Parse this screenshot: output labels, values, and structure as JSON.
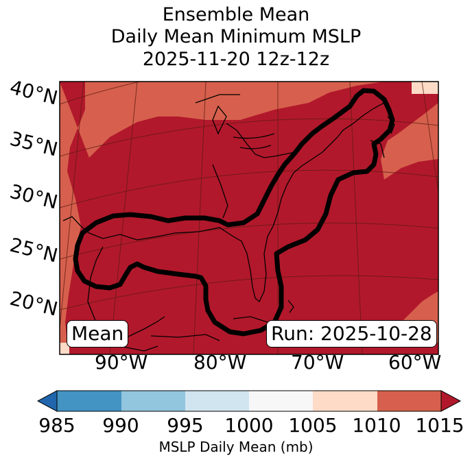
{
  "title": {
    "line1": "Ensemble Mean",
    "line2": "Daily Mean Minimum MSLP",
    "line3": "2025-11-20 12z-12z"
  },
  "map": {
    "lat_labels": [
      "40°N",
      "35°N",
      "30°N",
      "25°N",
      "20°N"
    ],
    "lon_labels": [
      "90°W",
      "80°W",
      "70°W",
      "60°W"
    ],
    "badge_mean": "Mean",
    "badge_run": "Run: 2025-10-28",
    "contour_color": "#000000"
  },
  "colorbar": {
    "ticks": [
      "985",
      "990",
      "995",
      "1000",
      "1005",
      "1010",
      "1015"
    ],
    "label": "MSLP Daily Mean (mb)",
    "colors": {
      "under": "#2166ac",
      "b985_990": "#4393c3",
      "b990_995": "#92c5de",
      "b995_1000": "#d1e5f0",
      "b1000_1005": "#f7f7f7",
      "b1005_1010": "#fddbc7",
      "b1010_1015": "#d6604d",
      "over": "#b2182b"
    }
  }
}
